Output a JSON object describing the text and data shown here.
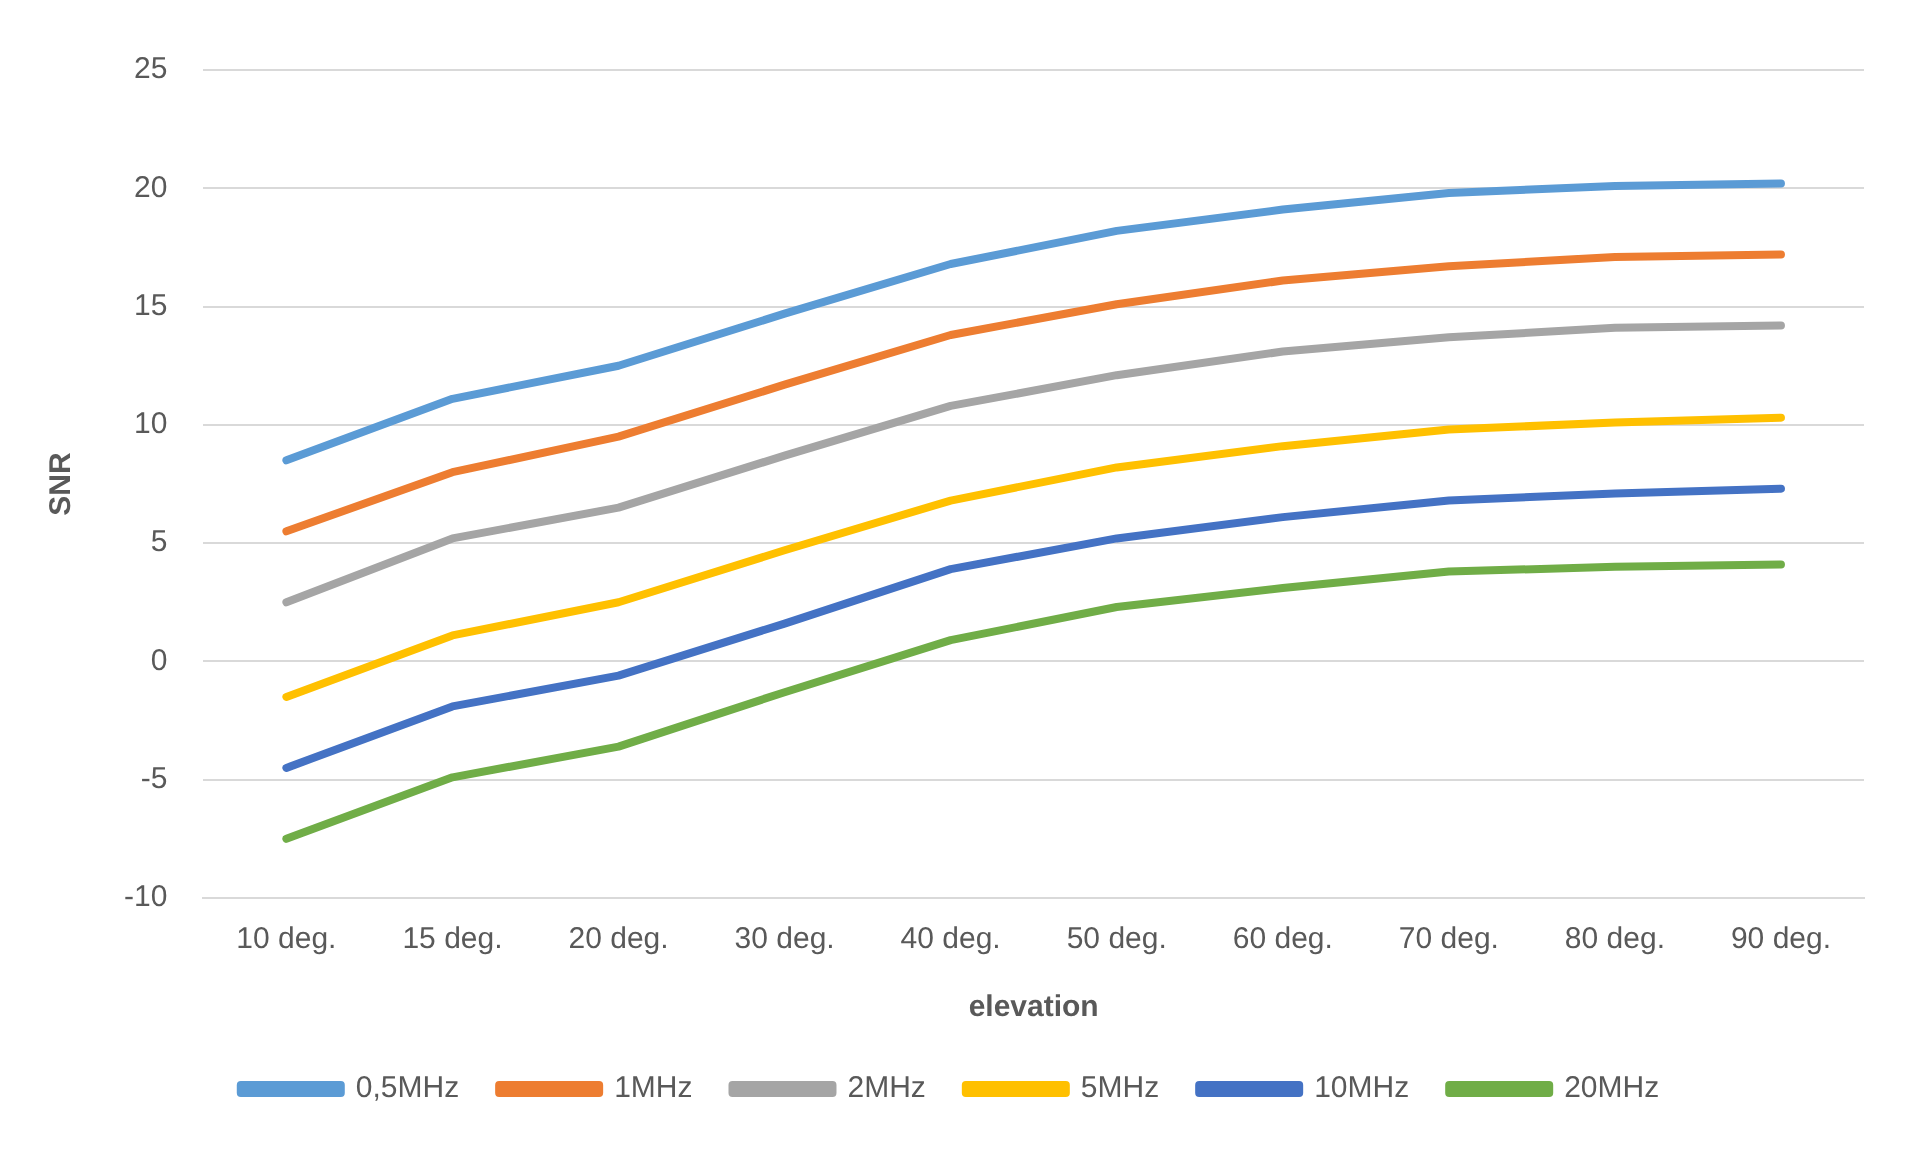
{
  "chart_data": {
    "type": "line",
    "xlabel": "elevation",
    "ylabel": "SNR",
    "categories": [
      "10 deg.",
      "15 deg.",
      "20 deg.",
      "30 deg.",
      "40 deg.",
      "50 deg.",
      "60 deg.",
      "70 deg.",
      "80 deg.",
      "90 deg."
    ],
    "ylim": [
      -10,
      25
    ],
    "yticks": [
      -10,
      -5,
      0,
      5,
      10,
      15,
      20,
      25
    ],
    "grid": "y",
    "legend": "bottom",
    "marker": "none",
    "line_style": "solid",
    "series": [
      {
        "name": "0,5MHz",
        "color": "#5b9bd5",
        "values": [
          8.5,
          11.1,
          12.5,
          14.7,
          16.8,
          18.2,
          19.1,
          19.8,
          20.1,
          20.2
        ]
      },
      {
        "name": "1MHz",
        "color": "#ed7d31",
        "values": [
          5.5,
          8.0,
          9.5,
          11.7,
          13.8,
          15.1,
          16.1,
          16.7,
          17.1,
          17.2
        ]
      },
      {
        "name": "2MHz",
        "color": "#a5a5a5",
        "values": [
          2.5,
          5.2,
          6.5,
          8.7,
          10.8,
          12.1,
          13.1,
          13.7,
          14.1,
          14.2
        ]
      },
      {
        "name": "5MHz",
        "color": "#ffc000",
        "values": [
          -1.5,
          1.1,
          2.5,
          4.7,
          6.8,
          8.2,
          9.1,
          9.8,
          10.1,
          10.3
        ]
      },
      {
        "name": "10MHz",
        "color": "#4472c4",
        "values": [
          -4.5,
          -1.9,
          -0.6,
          1.6,
          3.9,
          5.2,
          6.1,
          6.8,
          7.1,
          7.3
        ]
      },
      {
        "name": "20MHz",
        "color": "#70ad47",
        "values": [
          -7.5,
          -4.9,
          -3.6,
          -1.3,
          0.9,
          2.3,
          3.1,
          3.8,
          4.0,
          4.1
        ]
      }
    ]
  }
}
